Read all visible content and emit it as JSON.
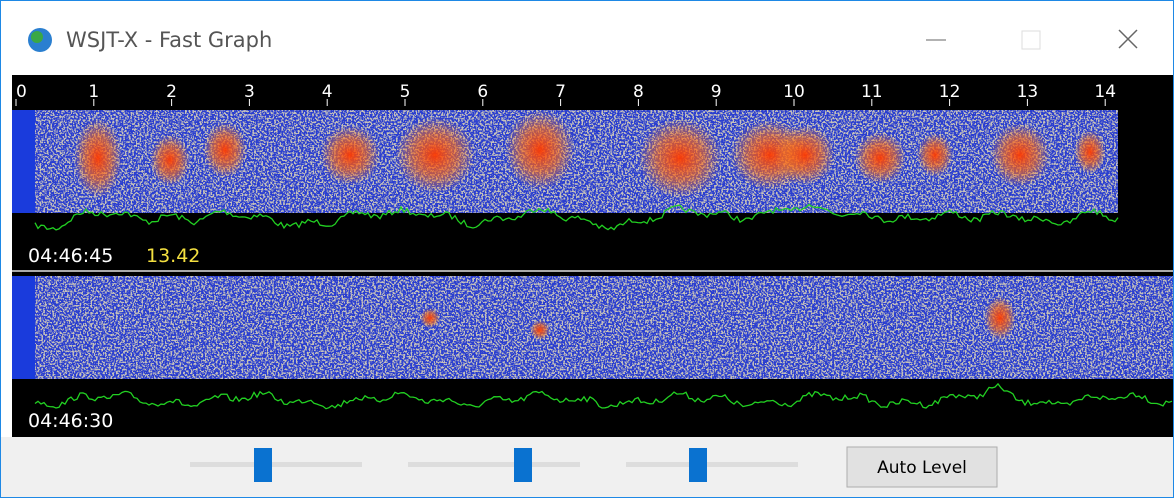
{
  "window": {
    "title": "WSJT-X - Fast Graph"
  },
  "scale": {
    "labels": [
      "0",
      "1",
      "2",
      "3",
      "4",
      "5",
      "6",
      "7",
      "8",
      "9",
      "10",
      "11",
      "12",
      "13",
      "14",
      "1"
    ]
  },
  "panels": [
    {
      "time": "04:46:45",
      "value": "13.42"
    },
    {
      "time": "04:46:30"
    }
  ],
  "controls": {
    "button": "Auto Level"
  }
}
